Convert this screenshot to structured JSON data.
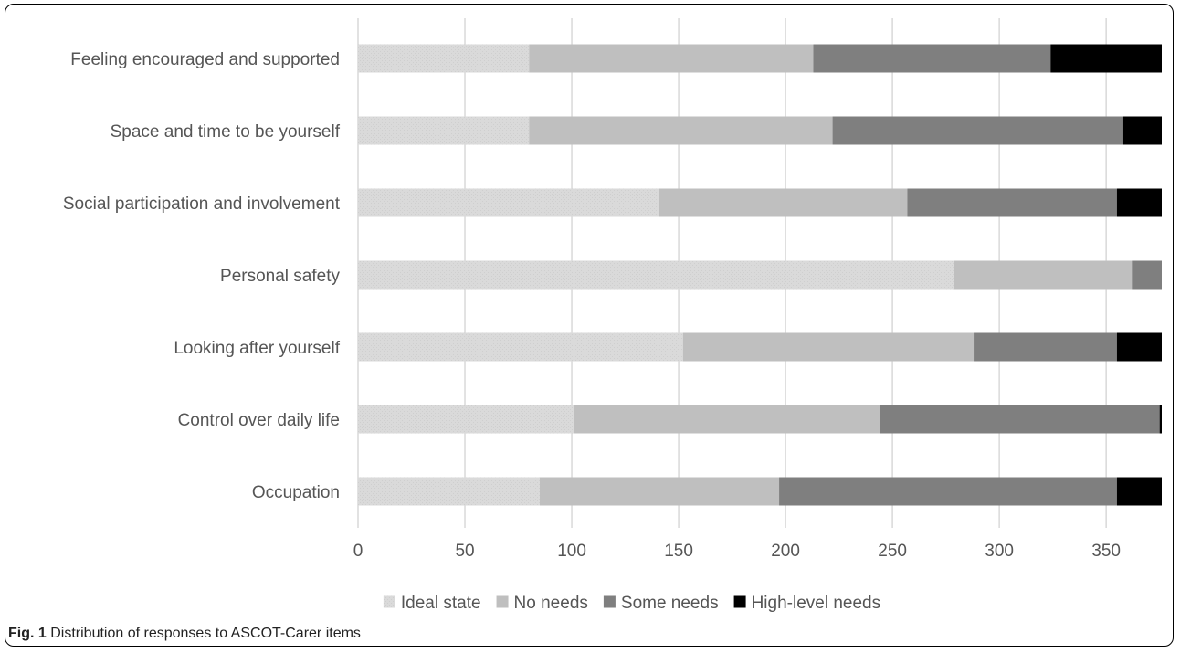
{
  "chart_data": {
    "type": "bar",
    "orientation": "horizontal",
    "stacked": true,
    "categories": [
      "Feeling encouraged and supported",
      "Space and time to be yourself",
      "Social participation and involvement",
      "Personal safety",
      "Looking after yourself",
      "Control over daily life",
      "Occupation"
    ],
    "series": [
      {
        "name": "Ideal state",
        "color": "#d9d9d9",
        "values": [
          80,
          80,
          141,
          279,
          152,
          101,
          85
        ]
      },
      {
        "name": "No needs",
        "color": "#bfbfbf",
        "values": [
          133,
          142,
          116,
          83,
          136,
          143,
          112
        ]
      },
      {
        "name": "Some needs",
        "color": "#7f7f7f",
        "values": [
          111,
          136,
          98,
          14,
          67,
          131,
          158
        ]
      },
      {
        "name": "High-level needs",
        "color": "#000000",
        "values": [
          52,
          18,
          21,
          0,
          21,
          1,
          21
        ]
      }
    ],
    "xlim": [
      0,
      376
    ],
    "xticks": [
      "0",
      "50",
      "100",
      "150",
      "200",
      "250",
      "300",
      "350"
    ],
    "xtick_values": [
      0,
      50,
      100,
      150,
      200,
      250,
      300,
      350
    ],
    "grid": "vertical",
    "legend_position": "bottom",
    "title": "",
    "xlabel": "",
    "ylabel": ""
  },
  "caption": {
    "label": "Fig. 1",
    "text": "Distribution of responses to ASCOT-Carer items"
  }
}
